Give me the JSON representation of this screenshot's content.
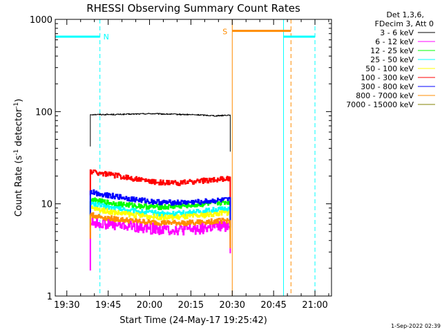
{
  "chart_data": {
    "type": "line",
    "title": "RHESSI Observing Summary Count Rates",
    "xlabel": "Start Time (24-May-17 19:25:42)",
    "ylabel_main": "Count Rate (s",
    "ylabel_sup1": "-1",
    "ylabel_mid": " detector",
    "ylabel_sup2": "-1",
    "ylabel_end": ")",
    "yscale": "log",
    "xlim_minutes": [
      19.43,
      21.1
    ],
    "ylim": [
      1,
      1000
    ],
    "x_ticks": [
      "19:30",
      "19:45",
      "20:00",
      "20:15",
      "20:30",
      "20:45",
      "21:00"
    ],
    "y_ticks": [
      "1",
      "10",
      "100",
      "1000"
    ],
    "legend_header": [
      "Det 1,3,6,",
      "FDecim 3, Att 0"
    ],
    "legend_position": "right",
    "series": [
      {
        "name": "3 - 6 keV",
        "color": "#000000",
        "x": [
          19.642,
          19.7,
          19.8,
          19.9,
          20.0,
          20.1,
          20.2,
          20.3,
          20.4,
          20.488
        ],
        "values": [
          93,
          93,
          93,
          94,
          95,
          94,
          93,
          92,
          90,
          92
        ]
      },
      {
        "name": "6 - 12 keV",
        "color": "#ff00ff",
        "x": [
          19.642,
          19.7,
          19.8,
          19.9,
          20.0,
          20.1,
          20.2,
          20.3,
          20.4,
          20.488
        ],
        "values": [
          6.3,
          6.2,
          5.9,
          5.7,
          5.4,
          5.3,
          5.2,
          5.4,
          5.6,
          5.8
        ]
      },
      {
        "name": "12 - 25 keV",
        "color": "#00ff00",
        "x": [
          19.642,
          19.7,
          19.8,
          19.9,
          20.0,
          20.1,
          20.2,
          20.3,
          20.4,
          20.488
        ],
        "values": [
          11.0,
          10.6,
          10.0,
          9.6,
          9.3,
          9.2,
          9.5,
          9.8,
          10.2,
          10.5
        ]
      },
      {
        "name": "25 - 50 keV",
        "color": "#00ffff",
        "x": [
          19.642,
          19.7,
          19.8,
          19.9,
          20.0,
          20.1,
          20.2,
          20.3,
          20.4,
          20.488
        ],
        "values": [
          10.0,
          9.6,
          8.9,
          8.4,
          8.0,
          7.8,
          7.9,
          8.2,
          8.6,
          8.9
        ]
      },
      {
        "name": "50 - 100 keV",
        "color": "#ffff00",
        "x": [
          19.642,
          19.7,
          19.8,
          19.9,
          20.0,
          20.1,
          20.2,
          20.3,
          20.4,
          20.488
        ],
        "values": [
          9.0,
          8.6,
          8.0,
          7.6,
          7.3,
          7.1,
          7.2,
          7.4,
          7.8,
          8.1
        ]
      },
      {
        "name": "100 - 300 keV",
        "color": "#ff0000",
        "x": [
          19.642,
          19.7,
          19.8,
          19.9,
          20.0,
          20.1,
          20.2,
          20.3,
          20.4,
          20.488
        ],
        "values": [
          22.5,
          21.5,
          20.2,
          18.8,
          17.5,
          16.8,
          16.9,
          17.6,
          18.3,
          18.7
        ]
      },
      {
        "name": "300 - 800 keV",
        "color": "#0000ff",
        "x": [
          19.642,
          19.7,
          19.8,
          19.9,
          20.0,
          20.1,
          20.2,
          20.3,
          20.4,
          20.488
        ],
        "values": [
          13.5,
          12.8,
          12.0,
          11.2,
          10.6,
          10.3,
          10.3,
          10.5,
          10.8,
          11.0
        ]
      },
      {
        "name": "800 - 7000 keV",
        "color": "#ff8c00",
        "x": [
          19.642,
          19.7,
          19.8,
          19.9,
          20.0,
          20.1,
          20.2,
          20.3,
          20.4,
          20.488
        ],
        "values": [
          7.6,
          7.2,
          6.8,
          6.5,
          6.3,
          6.2,
          6.2,
          6.3,
          6.5,
          6.6
        ]
      },
      {
        "name": "7000 - 15000 keV",
        "color": "#808000",
        "x": [],
        "values": []
      }
    ],
    "annotations": {
      "N": {
        "label": "N",
        "color": "#00ffff"
      },
      "S": {
        "label": "S",
        "color": "#ff8c00"
      }
    },
    "flags": {
      "night_bars": [
        {
          "start": 19.43,
          "end": 19.7,
          "level": 650,
          "color": "#00ffff"
        },
        {
          "start": 20.81,
          "end": 21.0,
          "level": 650,
          "color": "#00ffff"
        }
      ],
      "saa_bar": {
        "start": 20.5,
        "end": 20.855,
        "level": 750,
        "color": "#ff8c00"
      },
      "solid_lines": [
        {
          "x": 19.43,
          "color": "#00ffff"
        },
        {
          "x": 20.5,
          "color": "#ff8c00"
        },
        {
          "x": 20.81,
          "color": "#00ffff"
        }
      ],
      "dashed_lines": [
        {
          "x": 19.7,
          "color": "#00ffff"
        },
        {
          "x": 20.855,
          "color": "#ff8c00"
        },
        {
          "x": 21.0,
          "color": "#00ffff"
        }
      ]
    }
  },
  "footer_stamp": "1-Sep-2022 02:39"
}
